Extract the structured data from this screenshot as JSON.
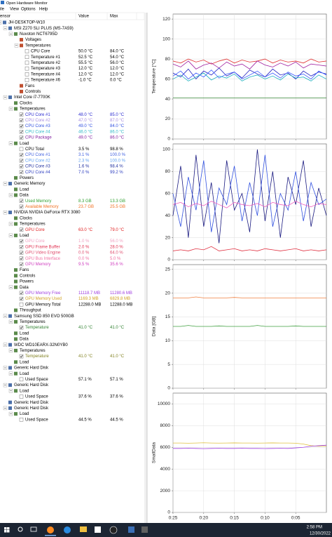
{
  "window": {
    "title": "Open Hardware Monitor"
  },
  "menu": [
    "ile",
    "View",
    "Options",
    "Help"
  ],
  "columns": [
    "ensor",
    "Value",
    "Max"
  ],
  "tree": [
    {
      "label": "JH-DESKTOP-W10",
      "depth": 0
    },
    {
      "label": "MSI Z270 SLI PLUS (MS-7A59)",
      "depth": 1
    },
    {
      "label": "Nuvoton NCT6795D",
      "depth": 2
    },
    {
      "label": "Voltages",
      "depth": 3
    },
    {
      "label": "Temperatures",
      "depth": 3
    },
    {
      "label": "CPU Core",
      "depth": 4,
      "value": "50.0 °C",
      "max": "84.0 °C",
      "checked": false
    },
    {
      "label": "Temperature #1",
      "depth": 4,
      "value": "52.5 °C",
      "max": "54.0 °C",
      "checked": false
    },
    {
      "label": "Temperature #2",
      "depth": 4,
      "value": "55.5 °C",
      "max": "56.0 °C",
      "checked": false
    },
    {
      "label": "Temperature #3",
      "depth": 4,
      "value": "12.0 °C",
      "max": "12.0 °C",
      "checked": false
    },
    {
      "label": "Temperature #4",
      "depth": 4,
      "value": "12.0 °C",
      "max": "12.0 °C",
      "checked": false
    },
    {
      "label": "Temperature #6",
      "depth": 4,
      "value": "-1.0 °C",
      "max": "0.0 °C",
      "checked": false
    },
    {
      "label": "Fans",
      "depth": 3
    },
    {
      "label": "Controls",
      "depth": 3
    },
    {
      "label": "Intel Core i7-7700K",
      "depth": 1
    },
    {
      "label": "Clocks",
      "depth": 2
    },
    {
      "label": "Temperatures",
      "depth": 2
    },
    {
      "label": "CPU Core #1",
      "depth": 3,
      "value": "48.0 °C",
      "max": "85.0 °C",
      "checked": true,
      "color": "#2a2ad0"
    },
    {
      "label": "CPU Core #2",
      "depth": 3,
      "value": "47.0 °C",
      "max": "87.0 °C",
      "checked": true,
      "color": "#a58be0"
    },
    {
      "label": "CPU Core #3",
      "depth": 3,
      "value": "49.0 °C",
      "max": "84.0 °C",
      "checked": true,
      "color": "#3050e0"
    },
    {
      "label": "CPU Core #4",
      "depth": 3,
      "value": "46.0 °C",
      "max": "86.0 °C",
      "checked": true,
      "color": "#30b8c8"
    },
    {
      "label": "CPU Package",
      "depth": 3,
      "value": "49.0 °C",
      "max": "86.0 °C",
      "checked": true,
      "color": "#8020a0"
    },
    {
      "label": "Load",
      "depth": 2
    },
    {
      "label": "CPU Total",
      "depth": 3,
      "value": "3.5 %",
      "max": "98.8 %",
      "checked": false
    },
    {
      "label": "CPU Core #1",
      "depth": 3,
      "value": "3.1 %",
      "max": "100.0 %",
      "checked": true,
      "color": "#4060e0"
    },
    {
      "label": "CPU Core #2",
      "depth": 3,
      "value": "2.3 %",
      "max": "100.0 %",
      "checked": true,
      "color": "#60a0f0"
    },
    {
      "label": "CPU Core #3",
      "depth": 3,
      "value": "1.6 %",
      "max": "98.4 %",
      "checked": true,
      "color": "#2030a0"
    },
    {
      "label": "CPU Core #4",
      "depth": 3,
      "value": "7.0 %",
      "max": "99.2 %",
      "checked": true,
      "color": "#3040c0"
    },
    {
      "label": "Powers",
      "depth": 2
    },
    {
      "label": "Generic Memory",
      "depth": 1
    },
    {
      "label": "Load",
      "depth": 2
    },
    {
      "label": "Data",
      "depth": 2
    },
    {
      "label": "Used Memory",
      "depth": 3,
      "value": "8.3 GB",
      "max": "13.3 GB",
      "checked": true,
      "color": "#30a030"
    },
    {
      "label": "Available Memory",
      "depth": 3,
      "value": "23.7 GB",
      "max": "25.5 GB",
      "checked": true,
      "color": "#f07020"
    },
    {
      "label": "NVIDIA NVIDIA GeForce RTX 3080",
      "depth": 1
    },
    {
      "label": "Clocks",
      "depth": 2
    },
    {
      "label": "Temperatures",
      "depth": 2
    },
    {
      "label": "GPU Core",
      "depth": 3,
      "value": "63.0 °C",
      "max": "79.0 °C",
      "checked": true,
      "color": "#e02020"
    },
    {
      "label": "Load",
      "depth": 2
    },
    {
      "label": "GPU Core",
      "depth": 3,
      "value": "1.0 %",
      "max": "56.0 %",
      "checked": true,
      "color": "#f0a0c0"
    },
    {
      "label": "GPU Frame Buffer",
      "depth": 3,
      "value": "2.0 %",
      "max": "28.0 %",
      "checked": true,
      "color": "#e03050"
    },
    {
      "label": "GPU Video Engine",
      "depth": 3,
      "value": "0.0 %",
      "max": "64.0 %",
      "checked": true,
      "color": "#e05070"
    },
    {
      "label": "GPU Bus Interface",
      "depth": 3,
      "value": "0.0 %",
      "max": "5.0 %",
      "checked": true,
      "color": "#f070a0"
    },
    {
      "label": "GPU Memory",
      "depth": 3,
      "value": "9.5 %",
      "max": "35.6 %",
      "checked": true,
      "color": "#d040c0"
    },
    {
      "label": "Fans",
      "depth": 2
    },
    {
      "label": "Controls",
      "depth": 2
    },
    {
      "label": "Powers",
      "depth": 2
    },
    {
      "label": "Data",
      "depth": 2
    },
    {
      "label": "GPU Memory Free",
      "depth": 3,
      "value": "11118.7 MB",
      "max": "11280.6 MB",
      "checked": true,
      "color": "#a040e0"
    },
    {
      "label": "GPU Memory Used",
      "depth": 3,
      "value": "1169.3 MB",
      "max": "6829.8 MB",
      "checked": true,
      "color": "#d0a020"
    },
    {
      "label": "GPU Memory Total",
      "depth": 3,
      "value": "12288.0 MB",
      "max": "12288.0 MB",
      "checked": false
    },
    {
      "label": "Throughput",
      "depth": 2
    },
    {
      "label": "Samsung SSD 850 EVO 500GB",
      "depth": 1
    },
    {
      "label": "Temperatures",
      "depth": 2
    },
    {
      "label": "Temperature",
      "depth": 3,
      "value": "41.0 °C",
      "max": "41.0 °C",
      "checked": true,
      "color": "#308030"
    },
    {
      "label": "Load",
      "depth": 2
    },
    {
      "label": "Data",
      "depth": 2
    },
    {
      "label": "WDC WD10EARX-32N0YB0",
      "depth": 1
    },
    {
      "label": "Temperatures",
      "depth": 2
    },
    {
      "label": "Temperature",
      "depth": 3,
      "value": "41.0 °C",
      "max": "41.0 °C",
      "checked": true,
      "color": "#808020"
    },
    {
      "label": "Load",
      "depth": 2
    },
    {
      "label": "Generic Hard Disk",
      "depth": 1
    },
    {
      "label": "Load",
      "depth": 2
    },
    {
      "label": "Used Space",
      "depth": 3,
      "value": "57.1 %",
      "max": "57.1 %",
      "checked": false
    },
    {
      "label": "Generic Hard Disk",
      "depth": 1
    },
    {
      "label": "Load",
      "depth": 2
    },
    {
      "label": "Used Space",
      "depth": 3,
      "value": "37.6 %",
      "max": "37.6 %",
      "checked": false
    },
    {
      "label": "Generic Hard Disk",
      "depth": 1
    },
    {
      "label": "Generic Hard Disk",
      "depth": 1
    },
    {
      "label": "Load",
      "depth": 2
    },
    {
      "label": "Used Space",
      "depth": 3,
      "value": "44.5 %",
      "max": "44.5 %",
      "checked": false
    }
  ],
  "time_axis": {
    "xlim": [
      25,
      0
    ],
    "xticks": [
      {
        "value": 25,
        "label": "0:25"
      },
      {
        "value": 20,
        "label": "0:20"
      },
      {
        "value": 15,
        "label": "0:15"
      },
      {
        "value": 10,
        "label": "0:10"
      },
      {
        "value": 5,
        "label": "0:05"
      }
    ],
    "x": [
      25,
      23.75,
      22.5,
      21.25,
      20,
      18.75,
      17.5,
      16.25,
      15,
      13.75,
      12.5,
      11.25,
      10,
      8.75,
      7.5,
      6.25,
      5,
      3.75,
      2.5,
      1.25,
      0
    ]
  },
  "chart_data": [
    {
      "type": "line",
      "ylabel": "Temperature [°C]",
      "ylim": [
        0,
        125
      ],
      "yticks": [
        0,
        20,
        40,
        60,
        80,
        100,
        120
      ],
      "grid": true,
      "series": [
        {
          "color": "#e03030",
          "values": [
            78,
            76,
            80,
            77,
            79,
            75,
            78,
            80,
            76,
            79,
            77,
            78,
            80,
            76,
            79,
            77,
            78,
            76,
            80,
            77,
            78
          ]
        },
        {
          "color": "#a020a0",
          "values": [
            75,
            72,
            78,
            70,
            74,
            76,
            71,
            77,
            73,
            75,
            70,
            78,
            74,
            72,
            76,
            73,
            77,
            71,
            75,
            74,
            73
          ]
        },
        {
          "color": "#2020c0",
          "values": [
            66,
            62,
            70,
            60,
            68,
            64,
            71,
            63,
            67,
            61,
            69,
            65,
            62,
            70,
            64,
            66,
            60,
            68,
            63,
            67,
            65
          ]
        },
        {
          "color": "#4060ff",
          "values": [
            63,
            68,
            60,
            66,
            62,
            69,
            61,
            65,
            67,
            60,
            64,
            68,
            62,
            66,
            61,
            67,
            63,
            65,
            60,
            68,
            64
          ]
        },
        {
          "color": "#20b0c0",
          "values": [
            60,
            64,
            58,
            62,
            66,
            59,
            63,
            61,
            65,
            58,
            62,
            64,
            60,
            63,
            59,
            65,
            61,
            62,
            58,
            64,
            60
          ]
        },
        {
          "color": "#3a8a3a",
          "values": [
            41,
            41,
            41,
            41,
            41,
            41,
            41,
            41,
            41,
            41,
            41,
            41,
            41,
            41,
            41,
            41,
            41,
            41,
            41,
            41,
            41
          ]
        }
      ]
    },
    {
      "type": "line",
      "ylim": [
        0,
        105
      ],
      "yticks": [
        0,
        20,
        40,
        60,
        80,
        100
      ],
      "grid": true,
      "series": [
        {
          "color": "#1a1a80",
          "values": [
            40,
            85,
            20,
            95,
            30,
            70,
            15,
            90,
            45,
            60,
            25,
            100,
            35,
            80,
            20,
            75,
            50,
            90,
            30,
            65,
            40
          ]
        },
        {
          "color": "#3050e0",
          "values": [
            60,
            30,
            75,
            45,
            90,
            25,
            65,
            50,
            85,
            35,
            70,
            40,
            95,
            30,
            60,
            45,
            80,
            35,
            70,
            50,
            55
          ]
        },
        {
          "color": "#f060c0",
          "values": [
            50,
            52,
            48,
            51,
            49,
            53,
            50,
            47,
            52,
            50,
            49,
            51,
            48,
            52,
            50,
            49,
            53,
            50,
            48,
            51,
            50
          ]
        },
        {
          "color": "#e03040",
          "values": [
            8,
            9,
            8,
            10,
            9,
            12,
            8,
            9,
            10,
            8,
            9,
            8,
            10,
            9,
            8,
            9,
            10,
            8,
            9,
            8,
            9
          ]
        }
      ]
    },
    {
      "type": "line",
      "ylabel": "Data [GB]",
      "ylim": [
        0,
        26
      ],
      "yticks": [
        0,
        5,
        10,
        15,
        20,
        25
      ],
      "grid": true,
      "series": [
        {
          "color": "#f08040",
          "values": [
            19,
            19,
            19,
            19.2,
            19,
            19,
            19,
            19,
            19.1,
            19,
            19,
            19,
            19,
            19,
            19,
            19,
            19,
            19,
            19,
            19,
            19
          ]
        },
        {
          "color": "#40a040",
          "values": [
            13,
            13,
            13.2,
            13,
            13,
            13,
            13.1,
            13,
            13,
            13,
            13,
            13.2,
            13,
            13,
            13,
            13,
            13.1,
            13,
            13,
            13,
            13
          ]
        }
      ]
    },
    {
      "type": "line",
      "ylabel": "SmallData",
      "ylim": [
        0,
        11000
      ],
      "yticks": [
        0,
        2000,
        4000,
        6000,
        8000,
        10000
      ],
      "grid": true,
      "series": [
        {
          "color": "#e0c040",
          "values": [
            6400,
            6400,
            6380,
            6400,
            6420,
            6400,
            6390,
            6400,
            6410,
            6400,
            6400,
            6390,
            6400,
            6410,
            6400,
            6400,
            6380,
            6300,
            6150,
            6100,
            6100
          ]
        },
        {
          "color": "#a040e0",
          "values": [
            5900,
            5900,
            5920,
            5900,
            5880,
            5900,
            5910,
            5900,
            5900,
            5920,
            5900,
            5900,
            5890,
            5900,
            5910,
            5900,
            5950,
            6000,
            6100,
            6150,
            6200
          ]
        }
      ]
    }
  ],
  "taskbar": {
    "time": "2:58 PM",
    "date": "12/30/2022"
  }
}
